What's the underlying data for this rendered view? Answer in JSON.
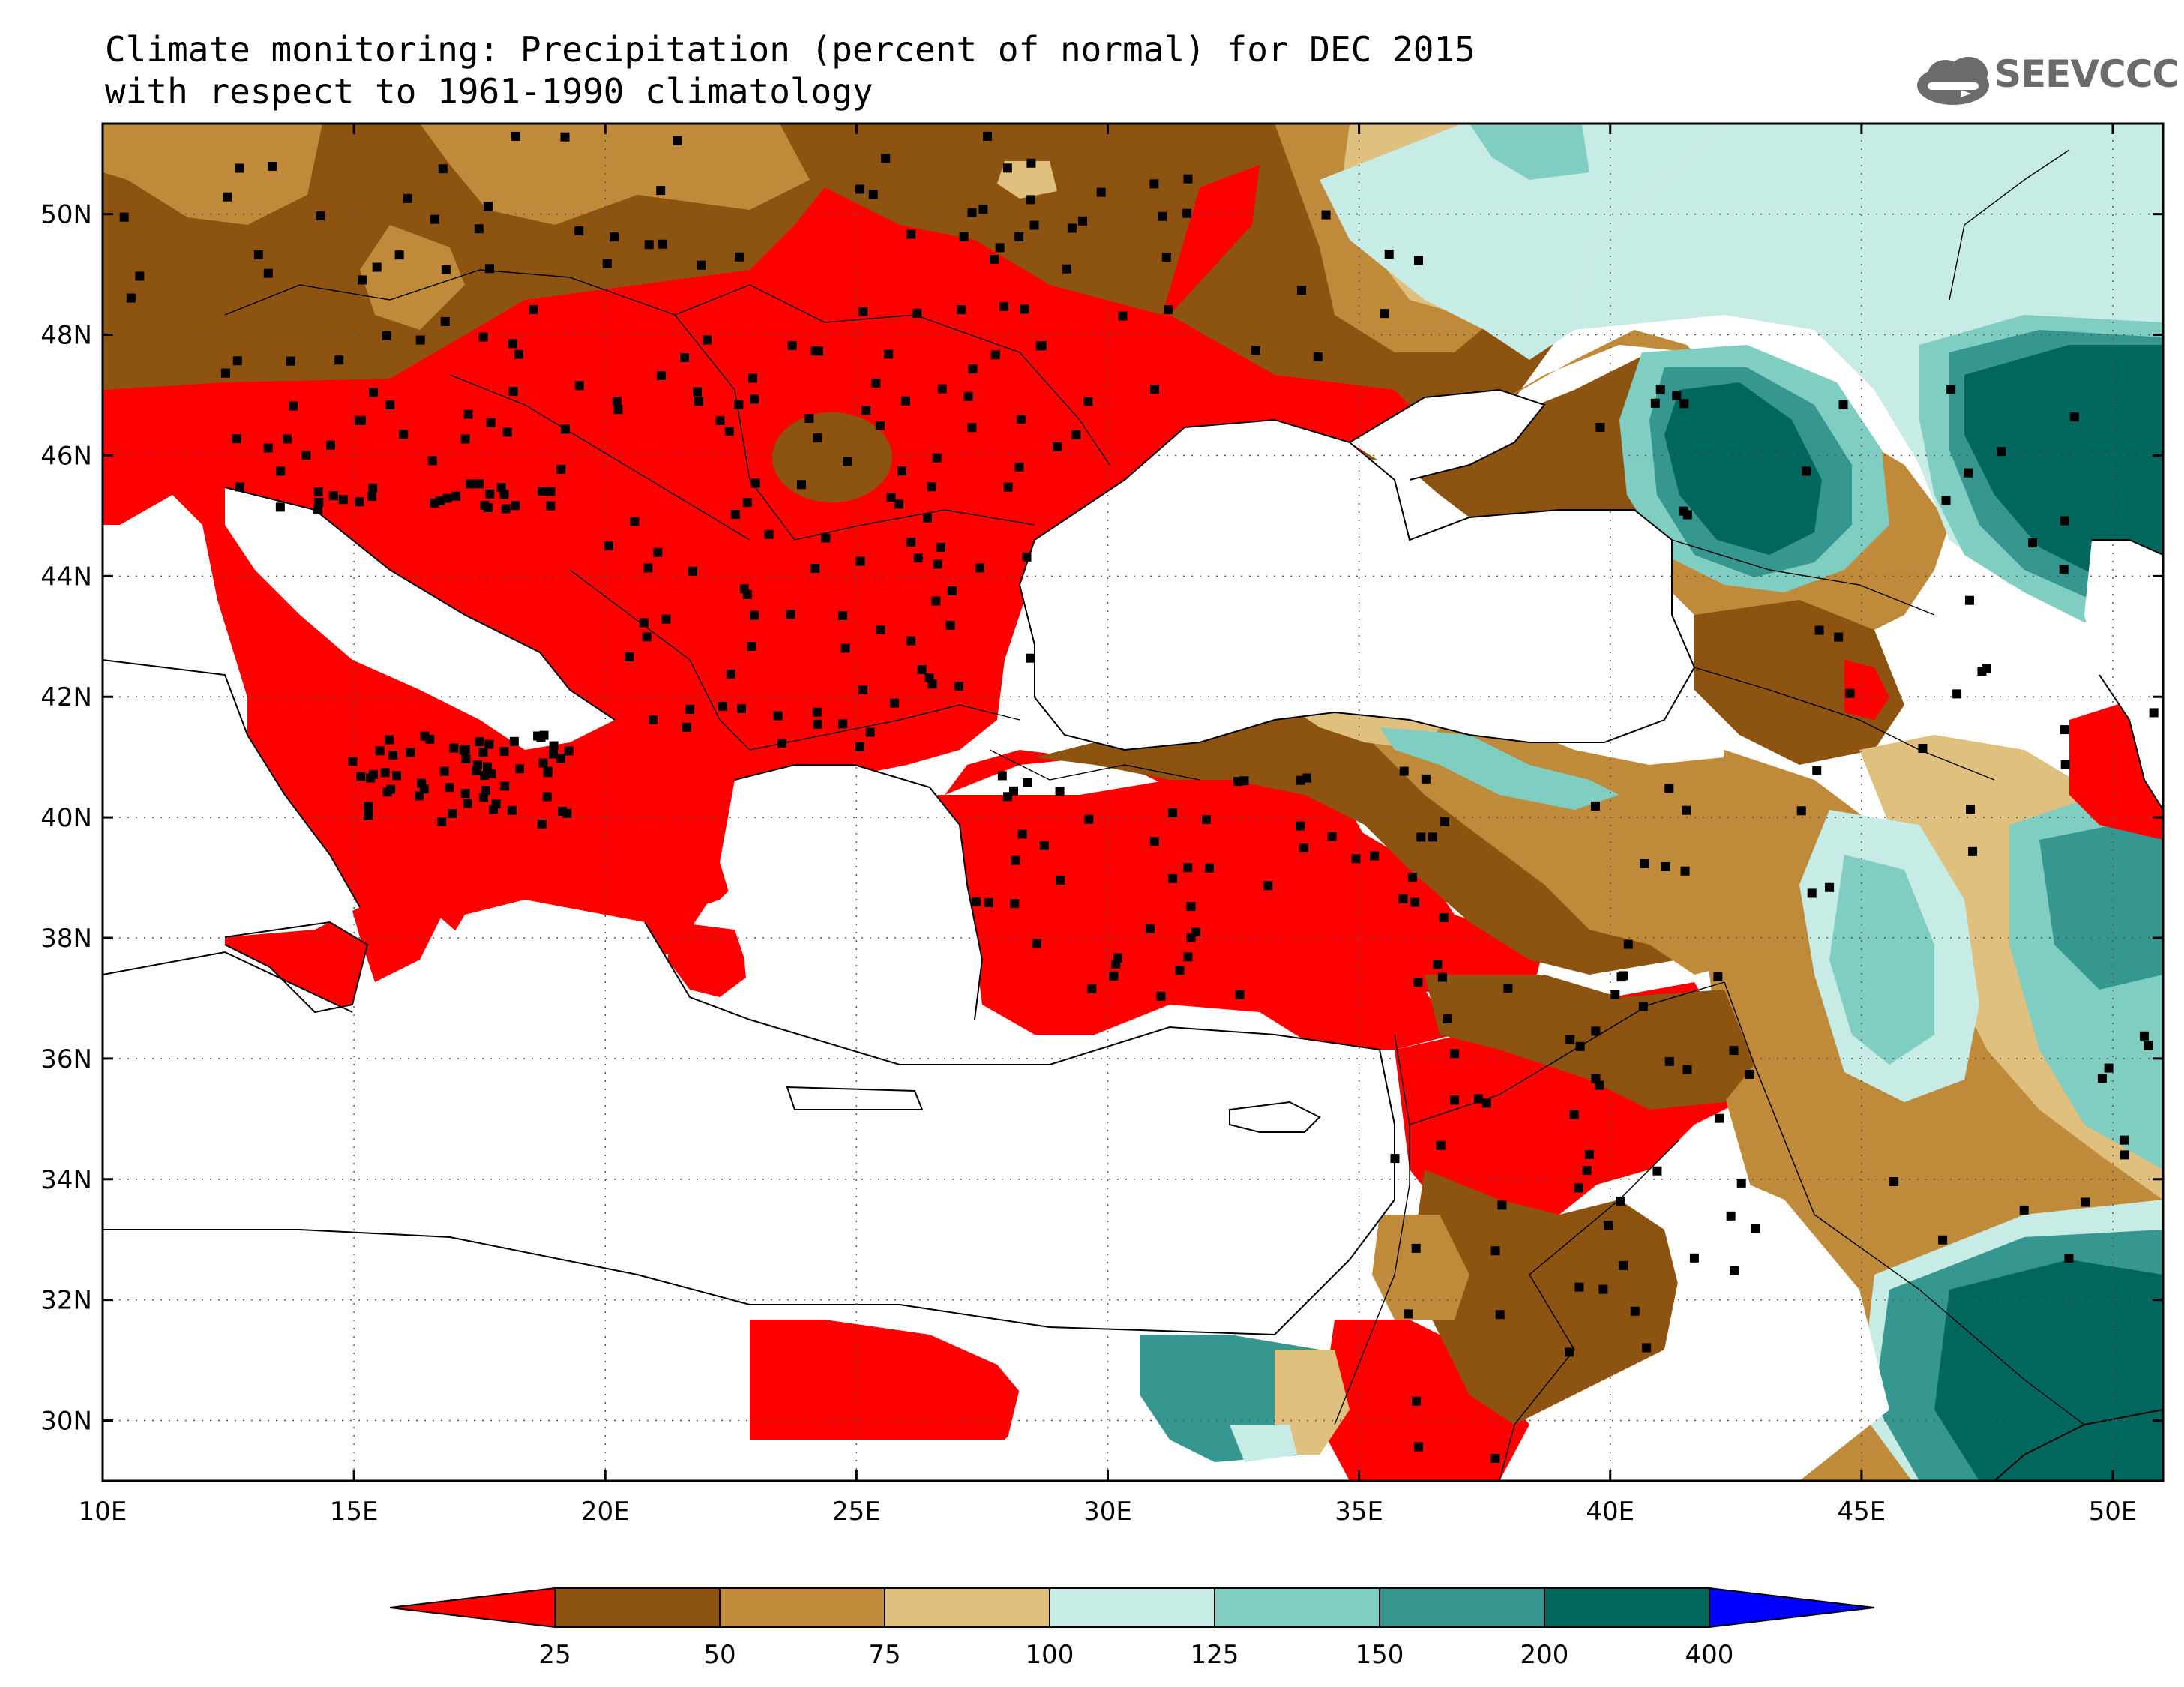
{
  "title": {
    "line1": "Climate monitoring: Precipitation (percent of normal) for DEC 2015",
    "line2": "with respect to 1961-1990 climatology"
  },
  "logo": {
    "text": "SEEVCCC",
    "icon": "cloud-icon"
  },
  "map": {
    "lon_range": [
      10,
      51
    ],
    "lat_range": [
      29,
      51.5
    ],
    "lon_ticks": [
      "10E",
      "15E",
      "20E",
      "25E",
      "30E",
      "35E",
      "40E",
      "45E",
      "50E"
    ],
    "lat_ticks": [
      "30N",
      "32N",
      "34N",
      "36N",
      "38N",
      "40N",
      "42N",
      "44N",
      "46N",
      "48N",
      "50N"
    ],
    "grid": "dotted",
    "colors": {
      "lt25": "#ff0000",
      "25_50": "#8c5410",
      "50_75": "#bf8a3a",
      "75_100": "#dfc07e",
      "100_125": "#c7ebe5",
      "125_150": "#80cdc1",
      "150_200": "#35978f",
      "200_400": "#01665e",
      "gt400": "#0000ff"
    }
  },
  "legend": {
    "labels": [
      "25",
      "50",
      "75",
      "100",
      "125",
      "150",
      "200",
      "400"
    ],
    "colors": [
      "#ff0000",
      "#8c5410",
      "#bf8a3a",
      "#dfc07e",
      "#c7ebe5",
      "#80cdc1",
      "#35978f",
      "#01665e",
      "#0000ff"
    ]
  }
}
